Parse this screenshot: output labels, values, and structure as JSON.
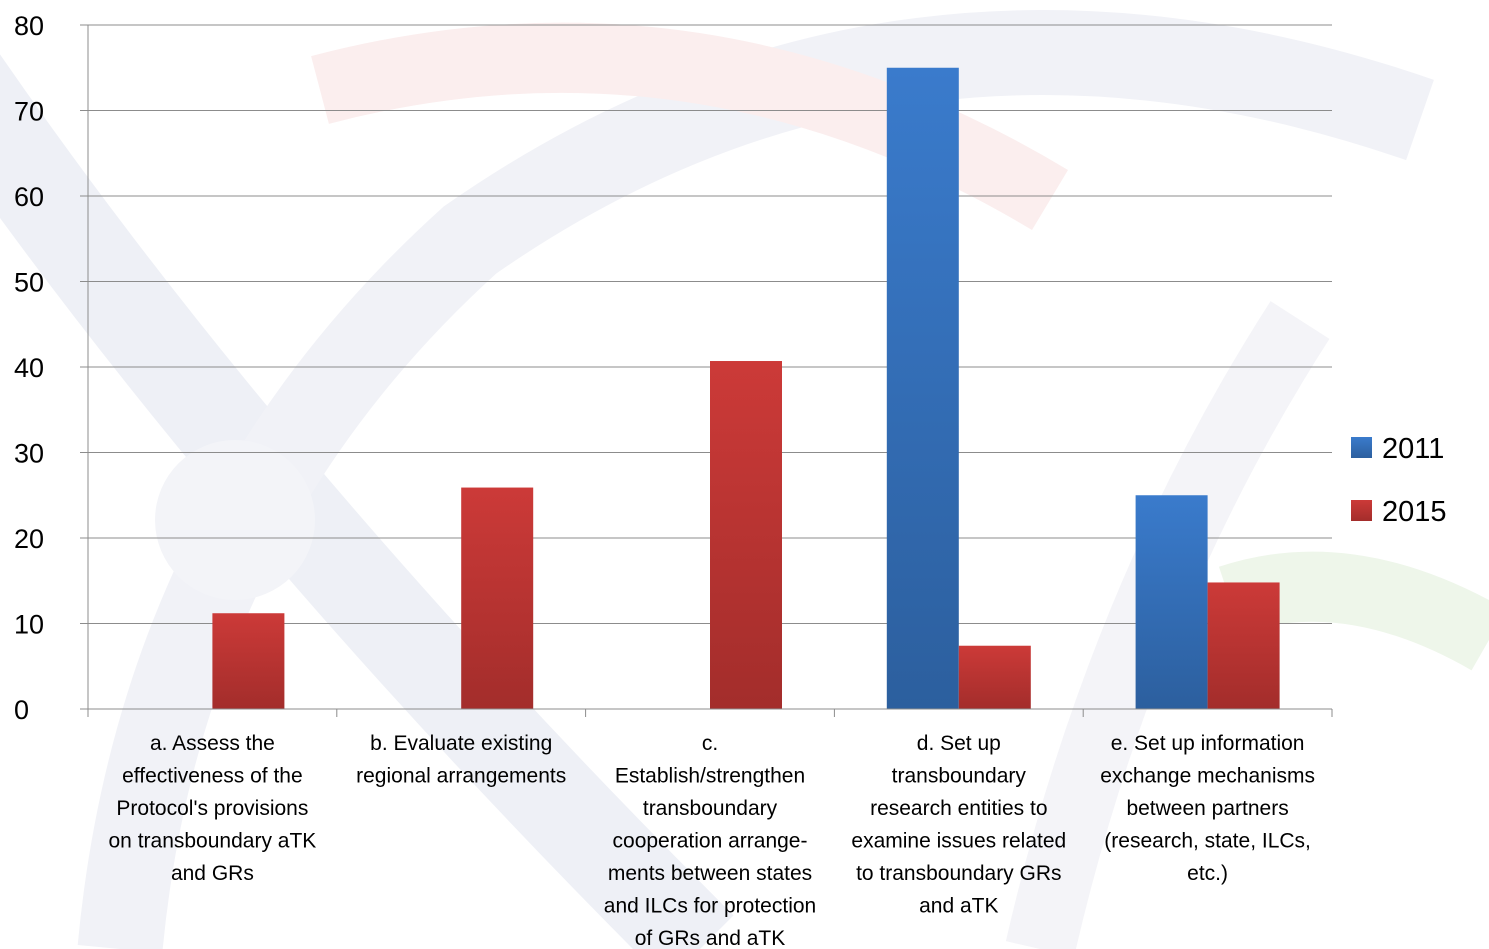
{
  "chart_data": {
    "type": "bar",
    "categories": [
      [
        "a. Assess the",
        "effectiveness of the",
        "Protocol's provisions",
        "on transboundary aTK",
        "and GRs"
      ],
      [
        "b. Evaluate existing",
        "regional arrangements"
      ],
      [
        "c.",
        "Establish/strengthen",
        "transboundary",
        "cooperation arrange-",
        "ments between states",
        "and ILCs for protection",
        "of GRs and aTK"
      ],
      [
        "d. Set up",
        "transboundary",
        "research entities to",
        "examine issues related",
        "to transboundary GRs",
        "and aTK"
      ],
      [
        "e. Set up information",
        "exchange mechanisms",
        "between partners",
        "(research, state, ILCs,",
        "etc.)"
      ]
    ],
    "series": [
      {
        "name": "2011",
        "values": [
          0,
          0,
          0,
          75,
          25
        ],
        "color": "#3a7bcc"
      },
      {
        "name": "2015",
        "values": [
          11.2,
          25.9,
          40.7,
          7.4,
          14.8
        ],
        "color": "#cc3a38"
      }
    ],
    "ylim": [
      0,
      80
    ],
    "yticks": [
      0,
      10,
      20,
      30,
      40,
      50,
      60,
      70,
      80
    ],
    "grid": true,
    "legend": "right"
  }
}
